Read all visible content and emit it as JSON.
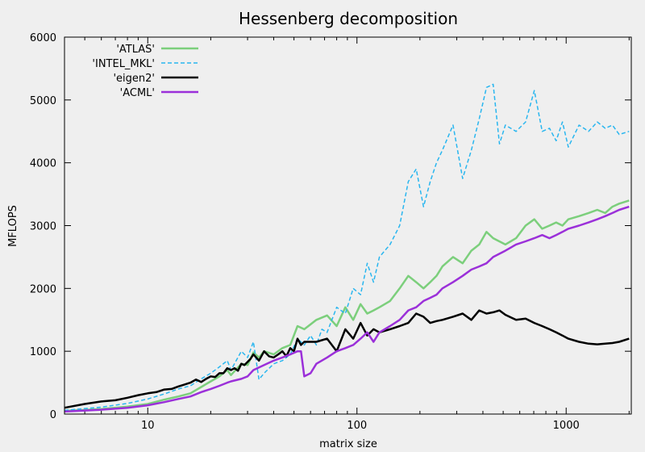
{
  "chart_data": {
    "type": "line",
    "title": "Hessenberg decomposition",
    "xlabel": "matrix size",
    "ylabel": "MFLOPS",
    "xscale": "log",
    "xlim": [
      4,
      2048
    ],
    "ylim": [
      0,
      6000
    ],
    "xticks": [
      10,
      100,
      1000
    ],
    "yticks": [
      0,
      1000,
      2000,
      3000,
      4000,
      5000,
      6000
    ],
    "grid": false,
    "legend_position": "top-left",
    "series": [
      {
        "name": "'ATLAS'",
        "color": "#7ccf7c",
        "dash": "solid",
        "x": [
          4,
          6,
          8,
          10,
          12,
          14,
          16,
          18,
          20,
          22,
          24,
          25,
          28,
          30,
          32,
          34,
          36,
          40,
          44,
          48,
          52,
          56,
          64,
          72,
          80,
          88,
          96,
          104,
          112,
          120,
          128,
          144,
          160,
          176,
          192,
          208,
          224,
          240,
          256,
          288,
          320,
          352,
          384,
          416,
          448,
          512,
          576,
          640,
          704,
          768,
          832,
          896,
          960,
          1024,
          1152,
          1280,
          1408,
          1536,
          1664,
          1792,
          2000
        ],
        "y": [
          50,
          80,
          120,
          160,
          230,
          280,
          330,
          430,
          520,
          600,
          700,
          620,
          800,
          780,
          980,
          900,
          1000,
          950,
          1050,
          1100,
          1400,
          1350,
          1500,
          1570,
          1400,
          1700,
          1500,
          1750,
          1600,
          1650,
          1700,
          1800,
          2000,
          2200,
          2100,
          2000,
          2100,
          2200,
          2350,
          2500,
          2400,
          2600,
          2700,
          2900,
          2800,
          2700,
          2800,
          3000,
          3100,
          2950,
          3000,
          3050,
          3000,
          3100,
          3150,
          3200,
          3250,
          3200,
          3300,
          3350,
          3400
        ]
      },
      {
        "name": "'INTEL_MKL'",
        "color": "#29b6ef",
        "dash": "dashed",
        "x": [
          4,
          6,
          8,
          10,
          12,
          14,
          16,
          18,
          20,
          22,
          24,
          25,
          28,
          30,
          32,
          34,
          36,
          40,
          44,
          48,
          52,
          56,
          60,
          64,
          68,
          72,
          80,
          88,
          96,
          104,
          112,
          120,
          128,
          144,
          160,
          176,
          192,
          208,
          224,
          240,
          256,
          288,
          320,
          352,
          384,
          416,
          448,
          480,
          512,
          576,
          640,
          704,
          768,
          832,
          896,
          960,
          1024,
          1152,
          1280,
          1408,
          1536,
          1664,
          1792,
          2000
        ],
        "y": [
          60,
          110,
          170,
          240,
          320,
          400,
          450,
          560,
          650,
          750,
          850,
          700,
          1000,
          900,
          1150,
          550,
          650,
          800,
          850,
          950,
          1200,
          1100,
          1250,
          1100,
          1350,
          1300,
          1700,
          1600,
          2000,
          1900,
          2400,
          2100,
          2500,
          2700,
          3000,
          3700,
          3900,
          3300,
          3700,
          4000,
          4200,
          4600,
          3750,
          4200,
          4700,
          5200,
          5250,
          4300,
          4600,
          4500,
          4650,
          5150,
          4500,
          4550,
          4350,
          4650,
          4250,
          4600,
          4500,
          4650,
          4550,
          4600,
          4450,
          4500
        ]
      },
      {
        "name": "'eigen2'",
        "color": "#000000",
        "dash": "solid",
        "x": [
          4,
          5,
          6,
          7,
          8,
          9,
          10,
          11,
          12,
          13,
          14,
          15,
          16,
          17,
          18,
          19,
          20,
          21,
          22,
          23,
          24,
          25,
          26,
          27,
          28,
          29,
          30,
          31,
          32,
          34,
          36,
          38,
          40,
          42,
          44,
          46,
          48,
          50,
          52,
          54,
          56,
          64,
          72,
          80,
          88,
          96,
          104,
          112,
          120,
          128,
          144,
          160,
          176,
          192,
          208,
          224,
          240,
          256,
          288,
          320,
          352,
          384,
          416,
          448,
          480,
          512,
          576,
          640,
          704,
          768,
          832,
          896,
          960,
          1024,
          1152,
          1280,
          1408,
          1536,
          1664,
          1792,
          2000
        ],
        "y": [
          100,
          160,
          200,
          220,
          260,
          300,
          330,
          350,
          390,
          400,
          440,
          470,
          500,
          550,
          510,
          560,
          600,
          590,
          650,
          650,
          730,
          700,
          730,
          690,
          800,
          780,
          830,
          880,
          950,
          850,
          1000,
          920,
          900,
          950,
          1000,
          920,
          1050,
          1000,
          1200,
          1100,
          1150,
          1150,
          1200,
          1000,
          1350,
          1200,
          1450,
          1250,
          1350,
          1300,
          1350,
          1400,
          1450,
          1600,
          1550,
          1450,
          1480,
          1500,
          1550,
          1600,
          1500,
          1650,
          1600,
          1620,
          1650,
          1580,
          1500,
          1520,
          1450,
          1400,
          1350,
          1300,
          1250,
          1200,
          1150,
          1120,
          1110,
          1120,
          1130,
          1150,
          1200
        ]
      },
      {
        "name": "'ACML'",
        "color": "#9b30d9",
        "dash": "solid",
        "x": [
          4,
          6,
          8,
          10,
          12,
          14,
          16,
          18,
          20,
          22,
          24,
          25,
          28,
          30,
          32,
          36,
          40,
          44,
          48,
          52,
          54,
          56,
          60,
          64,
          72,
          80,
          88,
          96,
          104,
          112,
          120,
          128,
          144,
          160,
          176,
          192,
          208,
          224,
          240,
          256,
          288,
          320,
          352,
          384,
          416,
          448,
          512,
          576,
          640,
          704,
          768,
          832,
          896,
          960,
          1024,
          1152,
          1280,
          1408,
          1536,
          1664,
          1792,
          2000
        ],
        "y": [
          40,
          70,
          100,
          140,
          190,
          240,
          280,
          350,
          400,
          450,
          500,
          520,
          560,
          600,
          700,
          780,
          850,
          900,
          950,
          1000,
          1000,
          600,
          650,
          800,
          900,
          1000,
          1050,
          1100,
          1200,
          1300,
          1150,
          1300,
          1400,
          1500,
          1650,
          1700,
          1800,
          1850,
          1900,
          2000,
          2100,
          2200,
          2300,
          2350,
          2400,
          2500,
          2600,
          2700,
          2750,
          2800,
          2850,
          2800,
          2850,
          2900,
          2950,
          3000,
          3050,
          3100,
          3150,
          3200,
          3250,
          3300
        ]
      }
    ]
  }
}
